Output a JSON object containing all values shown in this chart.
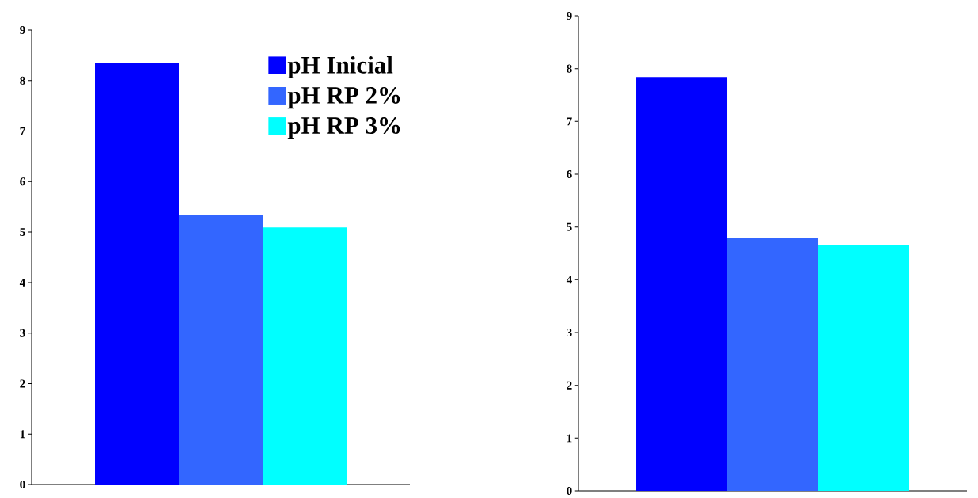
{
  "chart_data": [
    {
      "type": "bar",
      "categories": [
        null
      ],
      "ylim": [
        0,
        9
      ],
      "yticks": [
        0,
        1,
        2,
        3,
        4,
        5,
        6,
        7,
        8,
        9
      ],
      "legend": "top right",
      "grid": false,
      "series": [
        {
          "name": "pH Inicial",
          "color": "#0000ff",
          "values": [
            8.35
          ]
        },
        {
          "name": "pH RP 2%",
          "color": "#3366ff",
          "values": [
            5.33
          ]
        },
        {
          "name": "pH RP 3%",
          "color": "#00ffff",
          "values": [
            5.09
          ]
        }
      ]
    },
    {
      "type": "bar",
      "categories": [
        null
      ],
      "ylim": [
        0,
        9
      ],
      "yticks": [
        0,
        1,
        2,
        3,
        4,
        5,
        6,
        7,
        8,
        9
      ],
      "legend": false,
      "grid": false,
      "series": [
        {
          "color": "#0000ff",
          "values": [
            7.84
          ]
        },
        {
          "color": "#3366ff",
          "values": [
            4.8
          ]
        },
        {
          "color": "#00ffff",
          "values": [
            4.66
          ]
        }
      ]
    }
  ]
}
